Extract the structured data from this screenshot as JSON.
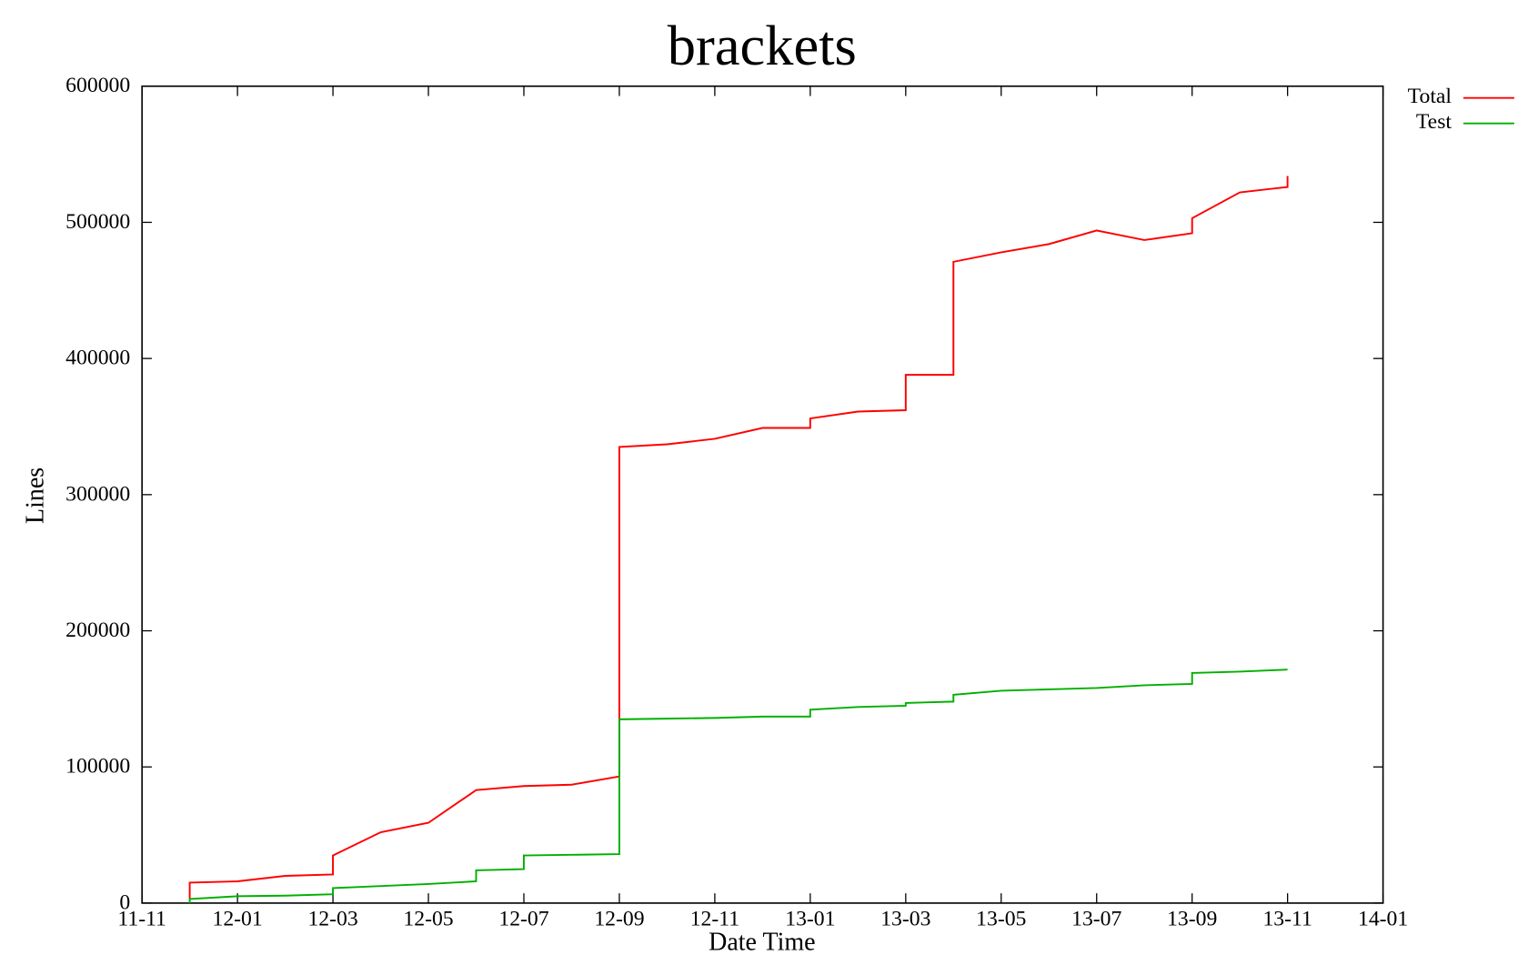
{
  "chart_data": {
    "type": "line",
    "title": "brackets",
    "x_label": "Date Time",
    "y_label": "Lines",
    "xlim": [
      "11-11",
      "14-01"
    ],
    "xticks": [
      "11-11",
      "12-01",
      "12-03",
      "12-05",
      "12-07",
      "12-09",
      "12-11",
      "13-01",
      "13-03",
      "13-05",
      "13-07",
      "13-09",
      "13-11",
      "14-01"
    ],
    "ylim": [
      0,
      600000
    ],
    "yticks": [
      0,
      100000,
      200000,
      300000,
      400000,
      500000,
      600000
    ],
    "legend": "outside-top-right",
    "series": [
      {
        "name": "Total",
        "color": "#ff0000",
        "x": [
          "11-12",
          "11-12",
          "12-01",
          "12-02",
          "12-03",
          "12-03",
          "12-04",
          "12-05",
          "12-06",
          "12-07",
          "12-08",
          "12-09",
          "12-09",
          "12-10",
          "12-11",
          "12-12",
          "13-01",
          "13-01",
          "13-02",
          "13-03",
          "13-03",
          "13-04",
          "13-04",
          "13-04",
          "13-05",
          "13-06",
          "13-07",
          "13-08",
          "13-09",
          "13-09",
          "13-10",
          "13-11",
          "13-11"
        ],
        "values": [
          3000,
          15000,
          16000,
          20000,
          21000,
          35000,
          52000,
          59000,
          83000,
          86000,
          87000,
          93000,
          335000,
          337000,
          341000,
          349000,
          349000,
          356000,
          361000,
          362000,
          388000,
          388000,
          455000,
          471000,
          478000,
          484000,
          494000,
          487000,
          492000,
          503000,
          522000,
          526000,
          534000
        ]
      },
      {
        "name": "Test",
        "color": "#00b000",
        "x": [
          "11-12",
          "11-12",
          "12-01",
          "12-02",
          "12-03",
          "12-03",
          "12-04",
          "12-05",
          "12-06",
          "12-06",
          "12-07",
          "12-07",
          "12-08",
          "12-09",
          "12-09",
          "12-10",
          "12-11",
          "12-12",
          "13-01",
          "13-01",
          "13-02",
          "13-03",
          "13-03",
          "13-04",
          "13-04",
          "13-05",
          "13-06",
          "13-07",
          "13-08",
          "13-09",
          "13-09",
          "13-10",
          "13-11"
        ],
        "values": [
          0,
          3000,
          5000,
          5500,
          6500,
          11000,
          12500,
          14000,
          16000,
          24000,
          25000,
          35000,
          35500,
          36000,
          135000,
          135500,
          136000,
          137000,
          137000,
          142000,
          144000,
          145000,
          147000,
          148000,
          153000,
          156000,
          157000,
          158000,
          160000,
          161000,
          169000,
          170000,
          171500
        ]
      }
    ]
  }
}
